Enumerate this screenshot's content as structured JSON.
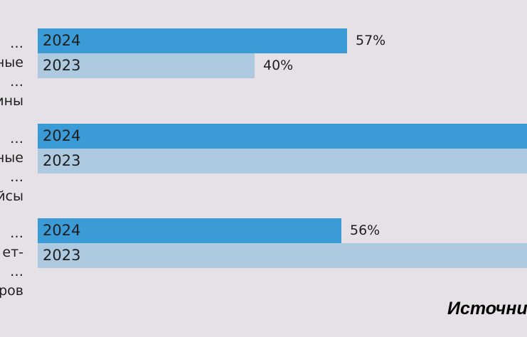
{
  "colors": {
    "bar_2024": "#3a9bd6",
    "bar_2023": "#aecae0",
    "background": "#e6e1e6"
  },
  "chart_data": {
    "type": "bar",
    "orientation": "horizontal",
    "categories": [
      "…ные\n…ины",
      "…ные\n…йсы",
      "…ет-\n…ров"
    ],
    "series": [
      {
        "name": "2024",
        "values": [
          57,
          null,
          56
        ],
        "value_labels": [
          "57%",
          "",
          "56%"
        ]
      },
      {
        "name": "2023",
        "values": [
          40,
          null,
          null
        ],
        "value_labels": [
          "40%",
          "",
          ""
        ]
      }
    ],
    "xlim": [
      0,
      100
    ],
    "legend": "none",
    "grid": false
  },
  "source": {
    "label": "Источни"
  }
}
